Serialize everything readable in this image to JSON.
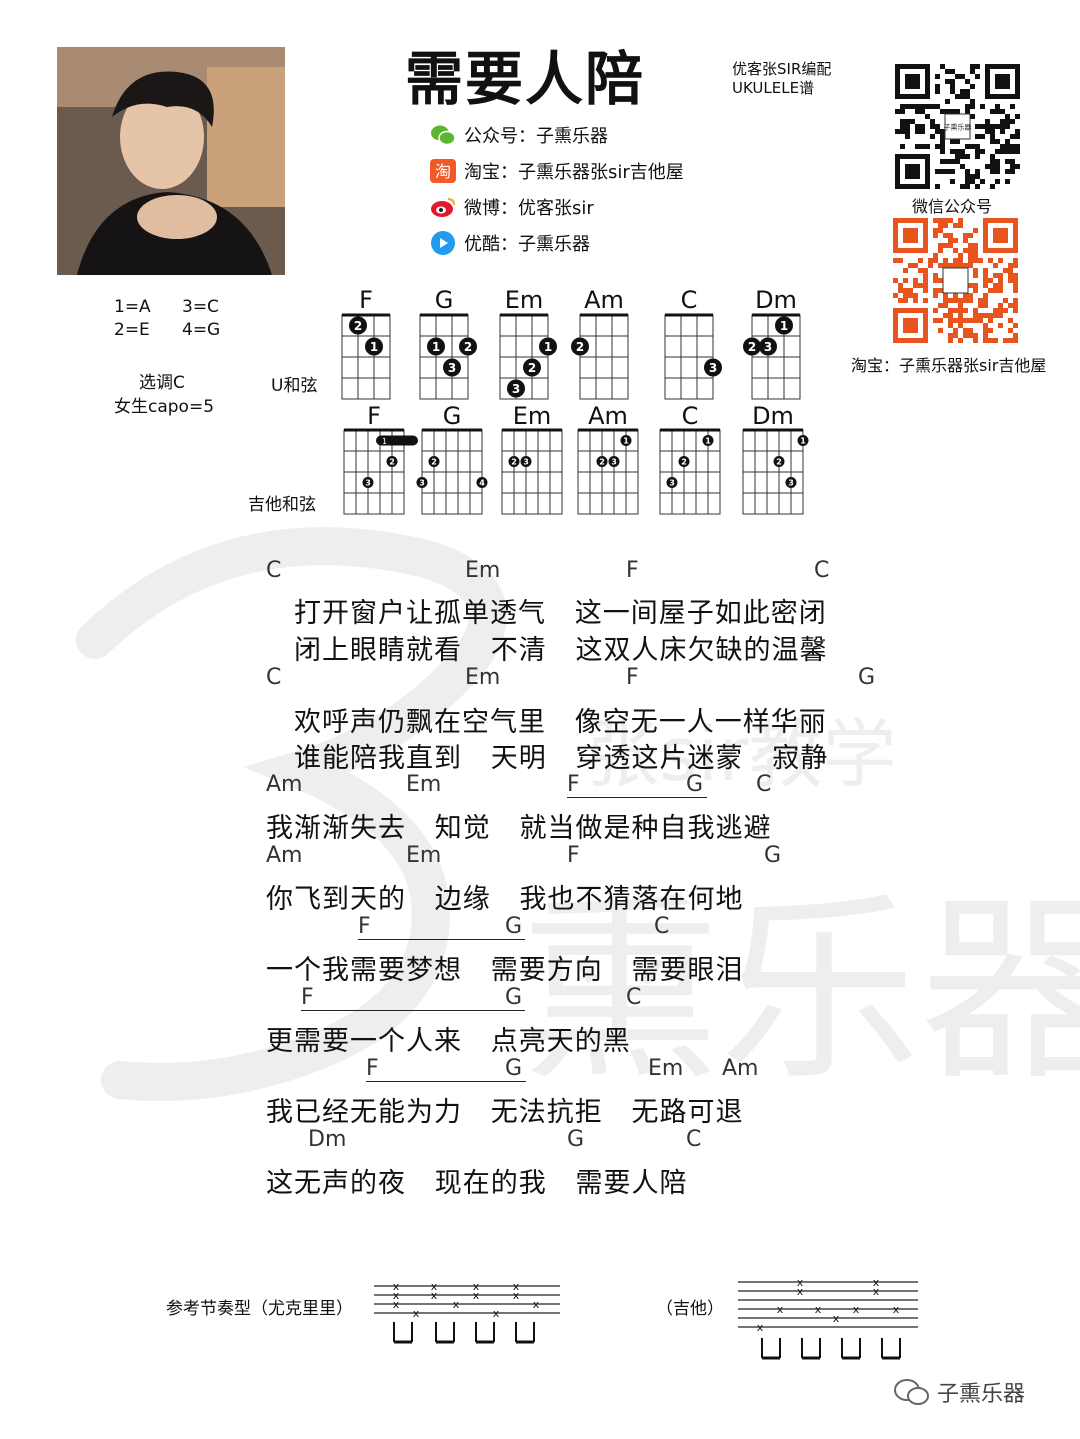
{
  "song": {
    "title": "需要人陪",
    "credit_line1": "优客张SIR编配",
    "credit_line2": "UKULELE谱"
  },
  "social": [
    {
      "icon": "wechat-icon",
      "text": "公众号：子熏乐器"
    },
    {
      "icon": "taobao-icon",
      "text": "淘宝：子熏乐器张sir吉他屋"
    },
    {
      "icon": "weibo-icon",
      "text": "微博：优客张sir"
    },
    {
      "icon": "youku-icon",
      "text": "优酷：子熏乐器"
    }
  ],
  "qr": {
    "wechat_caption": "微信公众号",
    "center_text": "子熏乐器",
    "taobao_caption": "淘宝：子熏乐器张sir吉他屋"
  },
  "tuning": {
    "s1": "1=A",
    "s3": "3=C",
    "s2": "2=E",
    "s4": "4=G"
  },
  "key": {
    "line1": "选调C",
    "line2": "女生capo=5"
  },
  "labels": {
    "ukulele": "U和弦",
    "guitar": "吉他和弦"
  },
  "ukulele_chords": [
    {
      "name": "F",
      "dots": [
        [
          1,
          3,
          "1"
        ],
        [
          0,
          2,
          "2"
        ]
      ]
    },
    {
      "name": "G",
      "dots": [
        [
          1,
          2,
          "1"
        ],
        [
          1,
          4,
          "2"
        ],
        [
          2,
          3,
          "3"
        ]
      ]
    },
    {
      "name": "Em",
      "dots": [
        [
          1,
          4,
          "1"
        ],
        [
          2,
          3,
          "2"
        ],
        [
          3,
          2,
          "3"
        ]
      ]
    },
    {
      "name": "Am",
      "dots": [
        [
          1,
          1,
          "2"
        ]
      ]
    },
    {
      "name": "C",
      "dots": [
        [
          2,
          4,
          "3"
        ]
      ]
    },
    {
      "name": "Dm",
      "dots": [
        [
          0,
          3,
          "1"
        ],
        [
          1,
          1,
          "2"
        ],
        [
          1,
          2,
          "3"
        ]
      ]
    }
  ],
  "guitar_chords": [
    {
      "name": "F",
      "dots": [
        [
          1,
          5,
          "2"
        ],
        [
          2,
          3,
          "3"
        ]
      ],
      "barre": "1"
    },
    {
      "name": "G",
      "dots": [
        [
          1,
          2,
          "2"
        ],
        [
          2,
          1,
          "3"
        ],
        [
          2,
          6,
          "4"
        ]
      ]
    },
    {
      "name": "Em",
      "dots": [
        [
          1,
          2,
          "2"
        ],
        [
          1,
          3,
          "3"
        ]
      ]
    },
    {
      "name": "Am",
      "dots": [
        [
          0,
          5,
          "1"
        ],
        [
          1,
          3,
          "2"
        ],
        [
          1,
          4,
          "3"
        ]
      ]
    },
    {
      "name": "C",
      "dots": [
        [
          0,
          5,
          "1"
        ],
        [
          1,
          3,
          "2"
        ],
        [
          2,
          2,
          "3"
        ]
      ]
    },
    {
      "name": "Dm",
      "dots": [
        [
          0,
          6,
          "1"
        ],
        [
          1,
          4,
          "2"
        ],
        [
          2,
          5,
          "3"
        ]
      ]
    }
  ],
  "sheet": {
    "chords": [
      {
        "t": "C"
      },
      {
        "t": "Em"
      },
      {
        "t": "F"
      },
      {
        "t": "C"
      },
      {
        "t": "C"
      },
      {
        "t": "Em"
      },
      {
        "t": "F"
      },
      {
        "t": "G"
      },
      {
        "t": "Am"
      },
      {
        "t": "Em"
      },
      {
        "t": "F"
      },
      {
        "t": "G"
      },
      {
        "t": "C"
      },
      {
        "t": "Am"
      },
      {
        "t": "Em"
      },
      {
        "t": "F"
      },
      {
        "t": "G"
      },
      {
        "t": "F"
      },
      {
        "t": "G"
      },
      {
        "t": "C"
      },
      {
        "t": "F"
      },
      {
        "t": "G"
      },
      {
        "t": "C"
      },
      {
        "t": "F"
      },
      {
        "t": "G"
      },
      {
        "t": "Em"
      },
      {
        "t": "Am"
      },
      {
        "t": "Dm"
      },
      {
        "t": "G"
      },
      {
        "t": "C"
      }
    ],
    "lyrics": [
      "打开窗户让孤单透气   这一间屋子如此密闭",
      "闭上眼睛就看   不清   这双人床欠缺的温馨",
      "欢呼声仍飘在空气里   像空无一人一样华丽",
      "谁能陪我直到   天明   穿透这片迷蒙   寂静",
      "我渐渐失去   知觉   就当做是种自我逃避",
      "你飞到天的   边缘   我也不猜落在何地",
      "一个我需要梦想   需要方向   需要眼泪",
      "更需要一个人来   点亮天的黑",
      "我已经无能为力   无法抗拒   无路可退",
      "这无声的夜   现在的我   需要人陪"
    ]
  },
  "rhythm": {
    "ukulele_label": "参考节奏型（尤克里里）",
    "guitar_label": "（吉他）",
    "mark": "x"
  },
  "footer": {
    "brand": "子熏乐器"
  },
  "watermark": {
    "char1": "子",
    "char2": "熏乐器",
    "text2": "张sir教学"
  },
  "colors": {
    "qr_orange": "#e8541e",
    "wechat_green": "#5cb531",
    "taobao_orange": "#f15a24",
    "weibo_red": "#e6162d",
    "youku_blue": "#1f9cf0",
    "watermark": "#ededed"
  }
}
